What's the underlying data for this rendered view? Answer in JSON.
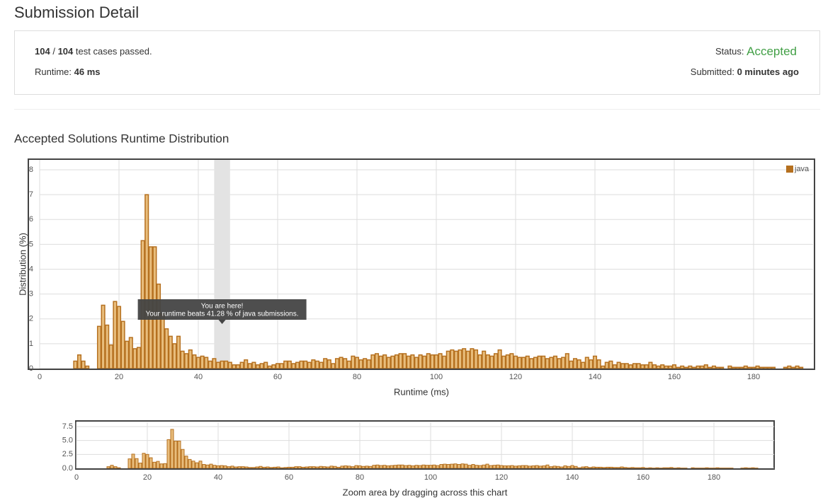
{
  "header": {
    "title": "Submission Detail"
  },
  "summary": {
    "passed": "104",
    "separator": "/",
    "total": "104",
    "passed_label": "test cases passed.",
    "runtime_label": "Runtime:",
    "runtime": "46 ms",
    "status_label": "Status:",
    "status": "Accepted",
    "submitted_label": "Submitted:",
    "submitted": "0 minutes ago"
  },
  "section_title": "Accepted Solutions Runtime Distribution",
  "chart_data": [
    {
      "type": "bar",
      "x_label": "Runtime (ms)",
      "y_label": "Distribution (%)",
      "x": [
        9,
        10,
        11,
        12,
        13,
        14,
        15,
        16,
        17,
        18,
        19,
        20,
        21,
        22,
        23,
        24,
        25,
        26,
        27,
        28,
        29,
        30,
        31,
        32,
        33,
        34,
        35,
        36,
        37,
        38,
        39,
        40,
        41,
        42,
        43,
        44,
        45,
        46,
        47,
        48,
        49,
        50,
        51,
        52,
        53,
        54,
        55,
        56,
        57,
        58,
        59,
        60,
        61,
        62,
        63,
        64,
        65,
        66,
        67,
        68,
        69,
        70,
        71,
        72,
        73,
        74,
        75,
        76,
        77,
        78,
        79,
        80,
        81,
        82,
        83,
        84,
        85,
        86,
        87,
        88,
        89,
        90,
        91,
        92,
        93,
        94,
        95,
        96,
        97,
        98,
        99,
        100,
        101,
        102,
        103,
        104,
        105,
        106,
        107,
        108,
        109,
        110,
        111,
        112,
        113,
        114,
        115,
        116,
        117,
        118,
        119,
        120,
        121,
        122,
        123,
        124,
        125,
        126,
        127,
        128,
        129,
        130,
        131,
        132,
        133,
        134,
        135,
        136,
        137,
        138,
        139,
        140,
        141,
        142,
        143,
        144,
        145,
        146,
        147,
        148,
        149,
        150,
        151,
        152,
        153,
        154,
        155,
        156,
        157,
        158,
        159,
        160,
        161,
        162,
        163,
        164,
        165,
        166,
        167,
        168,
        169,
        170,
        171,
        172,
        173,
        174,
        175,
        176,
        177,
        178,
        179,
        180,
        181,
        182,
        183,
        184,
        185,
        186,
        187,
        188,
        189,
        190,
        191,
        192
      ],
      "series": [
        {
          "name": "java",
          "color": "#b5701f",
          "values": [
            0.3,
            0.55,
            0.3,
            0.1,
            0,
            0,
            1.7,
            2.55,
            1.75,
            0.95,
            2.7,
            2.5,
            1.9,
            1.1,
            1.25,
            0.8,
            0.85,
            5.15,
            7.0,
            4.9,
            4.9,
            3.4,
            2.2,
            1.6,
            1.3,
            1.0,
            1.3,
            0.7,
            0.6,
            0.75,
            0.55,
            0.45,
            0.5,
            0.45,
            0.3,
            0.4,
            0.25,
            0.3,
            0.3,
            0.25,
            0.15,
            0.15,
            0.25,
            0.35,
            0.2,
            0.25,
            0.15,
            0.2,
            0.25,
            0.1,
            0.15,
            0.2,
            0.2,
            0.3,
            0.3,
            0.2,
            0.25,
            0.3,
            0.3,
            0.25,
            0.35,
            0.3,
            0.25,
            0.4,
            0.35,
            0.2,
            0.4,
            0.45,
            0.4,
            0.3,
            0.5,
            0.45,
            0.35,
            0.4,
            0.35,
            0.55,
            0.6,
            0.5,
            0.55,
            0.45,
            0.5,
            0.55,
            0.6,
            0.6,
            0.5,
            0.55,
            0.45,
            0.55,
            0.5,
            0.6,
            0.55,
            0.55,
            0.6,
            0.5,
            0.7,
            0.75,
            0.7,
            0.75,
            0.8,
            0.7,
            0.8,
            0.75,
            0.55,
            0.7,
            0.55,
            0.5,
            0.6,
            0.75,
            0.5,
            0.55,
            0.6,
            0.5,
            0.45,
            0.45,
            0.5,
            0.4,
            0.45,
            0.5,
            0.5,
            0.4,
            0.45,
            0.5,
            0.4,
            0.45,
            0.6,
            0.3,
            0.4,
            0.35,
            0.25,
            0.45,
            0.35,
            0.5,
            0.35,
            0.1,
            0.25,
            0.3,
            0.15,
            0.25,
            0.2,
            0.2,
            0.15,
            0.2,
            0.2,
            0.15,
            0.15,
            0.25,
            0.15,
            0.1,
            0.15,
            0.1,
            0.1,
            0.15,
            0.05,
            0.1,
            0.05,
            0.1,
            0.05,
            0.1,
            0.1,
            0.15,
            0.05,
            0.1,
            0.05,
            0.05,
            0,
            0.1,
            0.05,
            0.05,
            0.05,
            0.1,
            0.05,
            0.05,
            0.1,
            0.05,
            0.05,
            0.05,
            0.05,
            0,
            0,
            0.05,
            0.1,
            0.05,
            0.1,
            0.05
          ]
        }
      ],
      "xlim": [
        0,
        195
      ],
      "ylim": [
        0,
        8.4
      ],
      "xticks": [
        0,
        20,
        40,
        60,
        80,
        100,
        120,
        140,
        160,
        180
      ],
      "yticks": [
        0,
        1,
        2,
        3,
        4,
        5,
        6,
        7,
        8
      ],
      "grid": true,
      "legend": "top-right",
      "highlight": [
        44,
        48
      ],
      "tooltip": {
        "title": "You are here!",
        "text": "Your runtime beats 41.28 % of java submissions."
      }
    },
    {
      "type": "bar",
      "x_label": "Zoom area by dragging across this chart",
      "xlim": [
        0,
        197
      ],
      "ylim": [
        0,
        8.3
      ],
      "xticks": [
        0,
        20,
        40,
        60,
        80,
        100,
        120,
        140,
        160,
        180
      ],
      "yticks": [
        {
          "value": 0,
          "label": "0.0"
        },
        2.5,
        {
          "value": 5,
          "label": "5.0"
        },
        7.5
      ],
      "grid": true
    }
  ]
}
